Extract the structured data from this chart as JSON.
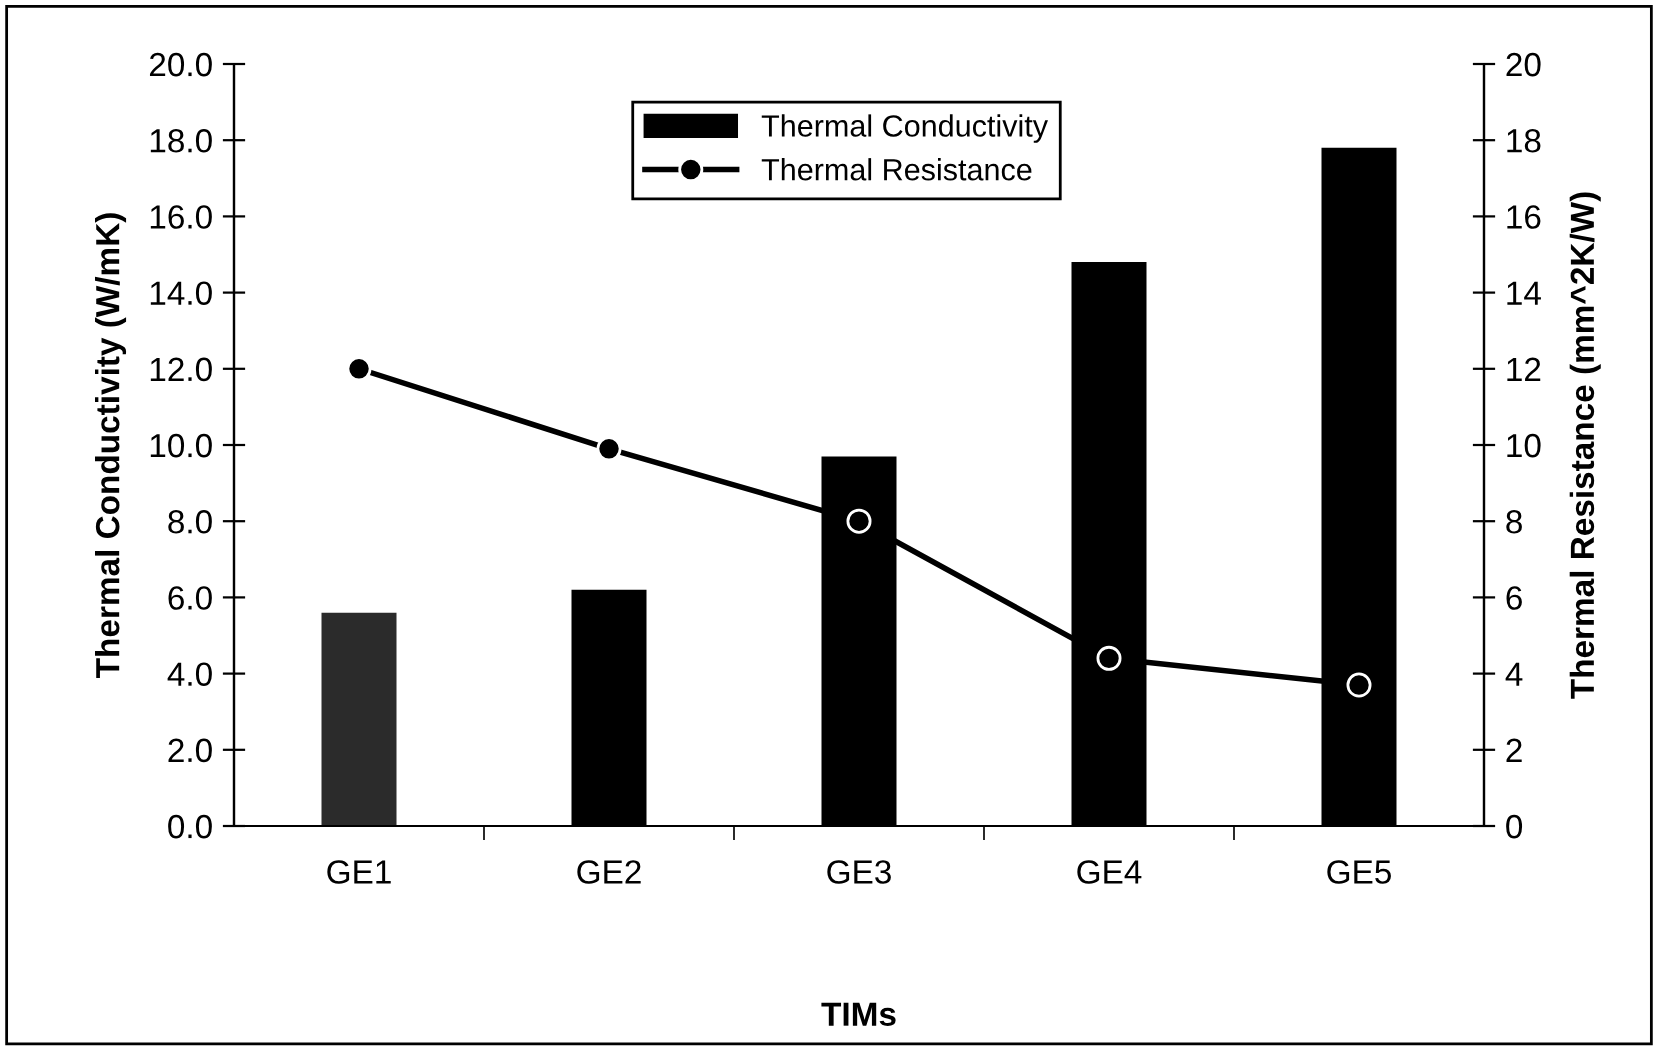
{
  "chart_data": {
    "type": "bar",
    "xlabel": "TIMs",
    "ylabel": "Thermal Conductivity (W/mK)",
    "y2label": "Thermal Resistance (mm^2K/W)",
    "categories": [
      "GE1",
      "GE2",
      "GE3",
      "GE4",
      "GE5"
    ],
    "series": [
      {
        "name": "Thermal Conductivity",
        "color": "#000000",
        "colors": [
          "#2b2b2b",
          "#000000",
          "#000000",
          "#000000",
          "#000000"
        ],
        "values": [
          5.6,
          6.2,
          9.7,
          14.8,
          17.8
        ]
      },
      {
        "name": "Thermal Resistance",
        "type": "line",
        "axis": "y2",
        "color": "#000000",
        "marker": "circle",
        "values": [
          12.0,
          9.9,
          8.0,
          4.4,
          3.7
        ]
      }
    ],
    "ylim": [
      0,
      20
    ],
    "yticks": [
      {
        "value": 0,
        "label": "0.0"
      },
      {
        "value": 2,
        "label": "2.0"
      },
      {
        "value": 4,
        "label": "4.0"
      },
      {
        "value": 6,
        "label": "6.0"
      },
      {
        "value": 8,
        "label": "8.0"
      },
      {
        "value": 10,
        "label": "10.0"
      },
      {
        "value": 12,
        "label": "12.0"
      },
      {
        "value": 14,
        "label": "14.0"
      },
      {
        "value": 16,
        "label": "16.0"
      },
      {
        "value": 18,
        "label": "18.0"
      },
      {
        "value": 20,
        "label": "20.0"
      }
    ],
    "y2lim": [
      0,
      20
    ],
    "y2ticks": [
      0,
      2,
      4,
      6,
      8,
      10,
      12,
      14,
      16,
      18,
      20
    ],
    "grid": false,
    "legend": "top"
  }
}
